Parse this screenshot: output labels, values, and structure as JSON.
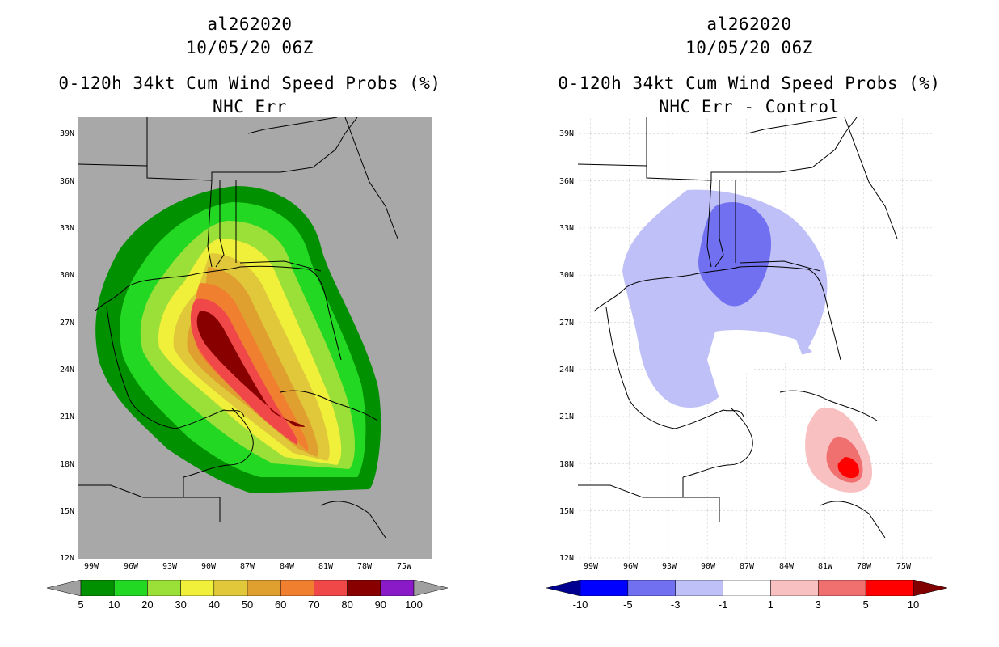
{
  "panels": [
    {
      "storm_id": "al262020",
      "datetime": "10/05/20 06Z",
      "product": "0-120h 34kt Cum Wind Speed Probs (%)",
      "subtitle": "NHC Err",
      "lat_labels": [
        "39N",
        "36N",
        "33N",
        "30N",
        "27N",
        "24N",
        "21N",
        "18N",
        "15N",
        "12N"
      ],
      "lon_labels": [
        "99W",
        "96W",
        "93W",
        "90W",
        "87W",
        "84W",
        "81W",
        "78W",
        "75W"
      ],
      "colorbar": {
        "labels": [
          "5",
          "10",
          "20",
          "30",
          "40",
          "50",
          "60",
          "70",
          "80",
          "90",
          "100"
        ],
        "colors": [
          "#009000",
          "#22d822",
          "#9be038",
          "#f0f03a",
          "#e0c83a",
          "#e0a030",
          "#f08030",
          "#f04848",
          "#880000",
          "#8a1ac8"
        ],
        "under_color": "#a0a0a0",
        "over_color": "#a0a0a0"
      }
    },
    {
      "storm_id": "al262020",
      "datetime": "10/05/20 06Z",
      "product": "0-120h 34kt Cum Wind Speed Probs (%)",
      "subtitle": "NHC Err - Control",
      "lat_labels": [
        "39N",
        "36N",
        "33N",
        "30N",
        "27N",
        "24N",
        "21N",
        "18N",
        "15N",
        "12N"
      ],
      "lon_labels": [
        "99W",
        "96W",
        "93W",
        "90W",
        "87W",
        "84W",
        "81W",
        "78W",
        "75W"
      ],
      "colorbar": {
        "labels": [
          "-10",
          "-5",
          "-3",
          "-1",
          "1",
          "3",
          "5",
          "10"
        ],
        "colors": [
          "#0000ff",
          "#7070f0",
          "#c0c0f8",
          "#ffffff",
          "#f8c0c0",
          "#f07070",
          "#ff0000"
        ],
        "under_color": "#000090",
        "over_color": "#800000"
      }
    }
  ]
}
